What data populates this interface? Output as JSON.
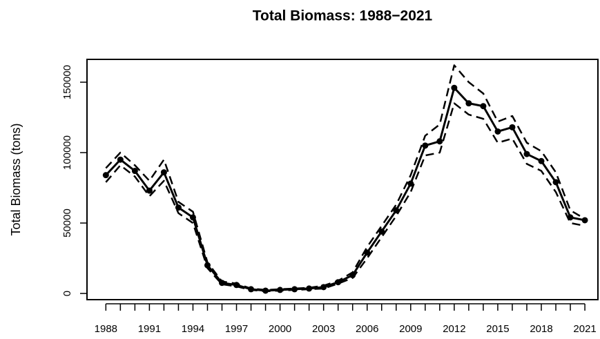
{
  "chart_data": {
    "type": "line",
    "title": "Total Biomass: 1988−2021",
    "y_label": "Total Biomass (tons)",
    "x": [
      1988,
      1989,
      1990,
      1991,
      1992,
      1993,
      1994,
      1995,
      1996,
      1997,
      1998,
      1999,
      2000,
      2001,
      2002,
      2003,
      2004,
      2005,
      2006,
      2007,
      2008,
      2009,
      2010,
      2011,
      2012,
      2013,
      2014,
      2015,
      2016,
      2017,
      2018,
      2019,
      2020,
      2021
    ],
    "series": [
      {
        "color": "#000000",
        "style": "solid",
        "markers": true,
        "values": [
          84000,
          95000,
          87000,
          73000,
          86000,
          61000,
          54000,
          20000,
          7500,
          6000,
          3000,
          2000,
          2500,
          3000,
          3500,
          4500,
          8000,
          13000,
          29000,
          44000,
          59000,
          78000,
          105000,
          108000,
          146000,
          135000,
          133000,
          115000,
          118000,
          99000,
          94000,
          79000,
          54000,
          52000
        ]
      },
      {
        "color": "#000000",
        "style": "dashed",
        "markers": false,
        "values": [
          89000,
          100000,
          91000,
          80000,
          95000,
          65000,
          58000,
          22000,
          8500,
          7000,
          3500,
          2500,
          3000,
          3500,
          4000,
          5500,
          9000,
          15000,
          33000,
          48000,
          63000,
          84000,
          112000,
          120000,
          162000,
          150000,
          142000,
          122000,
          126000,
          107000,
          101000,
          86000,
          59000,
          53000
        ]
      },
      {
        "color": "#000000",
        "style": "dashed",
        "markers": false,
        "values": [
          79000,
          91000,
          83000,
          69000,
          80000,
          57000,
          50000,
          18000,
          6500,
          5000,
          2500,
          1500,
          2000,
          2500,
          3000,
          3500,
          7000,
          11000,
          25000,
          40000,
          55000,
          72000,
          98000,
          100000,
          135000,
          127000,
          124000,
          107000,
          110000,
          92000,
          87000,
          72000,
          50000,
          48000
        ]
      }
    ],
    "xlim": [
      1986.7,
      2021.9
    ],
    "xticks": [
      1988,
      1991,
      1994,
      1997,
      2000,
      2003,
      2006,
      2009,
      2012,
      2015,
      2018,
      2021
    ],
    "xminor_ticks": [
      1989,
      1990,
      1992,
      1993,
      1995,
      1996,
      1998,
      1999,
      2001,
      2002,
      2004,
      2005,
      2007,
      2008,
      2010,
      2011,
      2013,
      2014,
      2016,
      2017,
      2019,
      2020
    ],
    "ylim": [
      -4400,
      166200
    ],
    "yticks": [
      0,
      50000,
      100000,
      150000
    ],
    "grid": false
  }
}
